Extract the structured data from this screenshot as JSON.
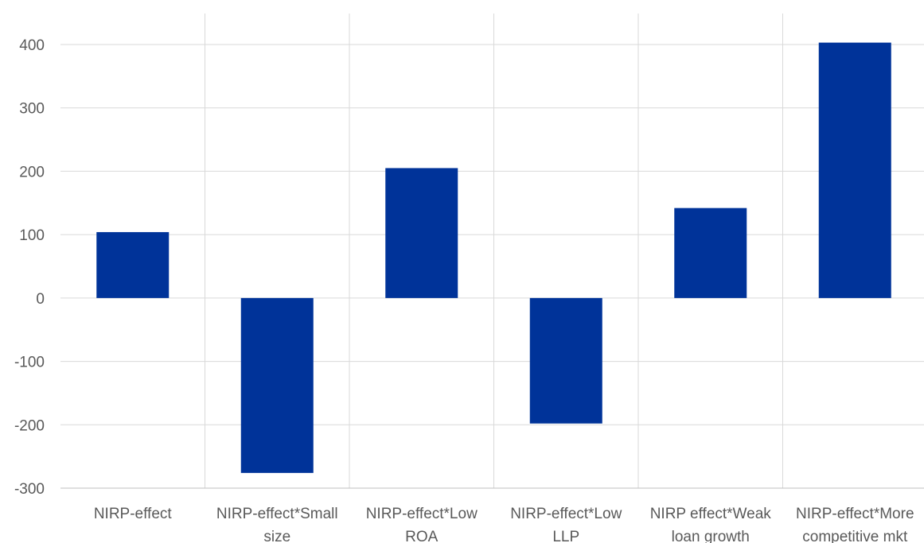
{
  "chart_data": {
    "type": "bar",
    "title": "",
    "xlabel": "",
    "ylabel": "",
    "categories": [
      [
        "NIRP-effect"
      ],
      [
        "NIRP-effect*Small",
        "size"
      ],
      [
        "NIRP-effect*Low",
        "ROA"
      ],
      [
        "NIRP-effect*Low",
        "LLP"
      ],
      [
        "NIRP effect*Weak",
        "loan growth"
      ],
      [
        "NIRP-effect*More",
        "competitive mkt"
      ]
    ],
    "values": [
      104,
      -276,
      205,
      -198,
      142,
      403
    ],
    "ylim": [
      -300,
      400
    ],
    "yticks": [
      400,
      300,
      200,
      100,
      0,
      -100,
      -200,
      -300
    ],
    "grid": true,
    "legend": "none",
    "colors": {
      "bar": "#003399",
      "grid": "#d9d9d9",
      "axis": "#bfbfbf",
      "text": "#595959"
    }
  }
}
